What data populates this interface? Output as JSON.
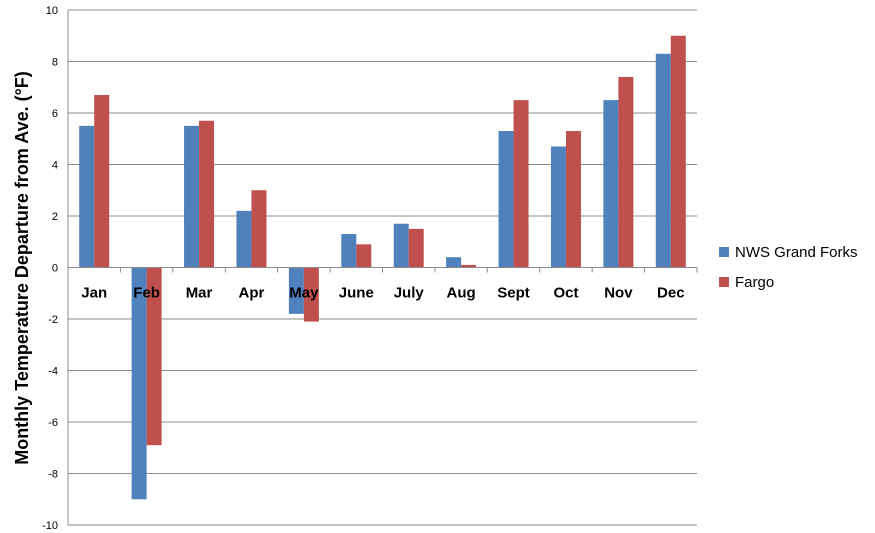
{
  "chart_data": {
    "type": "bar",
    "title": "",
    "xlabel": "",
    "ylabel": "Monthly Temperature Departure from Ave. (°F)",
    "ylim": [
      -10,
      10
    ],
    "yticks": [
      -10,
      -8,
      -6,
      -4,
      -2,
      0,
      2,
      4,
      6,
      8,
      10
    ],
    "grid": true,
    "legend_position": "right",
    "categories": [
      "Jan",
      "Feb",
      "Mar",
      "Apr",
      "May",
      "June",
      "July",
      "Aug",
      "Sept",
      "Oct",
      "Nov",
      "Dec"
    ],
    "series": [
      {
        "name": "NWS Grand Forks",
        "color": "#4f81bd",
        "values": [
          5.5,
          -9.0,
          5.5,
          2.2,
          -1.8,
          1.3,
          1.7,
          0.4,
          5.3,
          4.7,
          6.5,
          8.3
        ]
      },
      {
        "name": "Fargo",
        "color": "#c0504d",
        "values": [
          6.7,
          -6.9,
          5.7,
          3.0,
          -2.1,
          0.9,
          1.5,
          0.1,
          6.5,
          5.3,
          7.4,
          9.0
        ]
      }
    ]
  }
}
